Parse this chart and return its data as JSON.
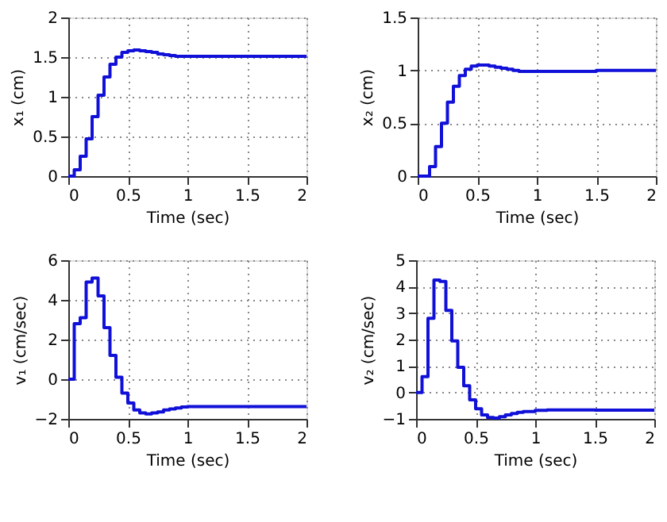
{
  "chart_data": [
    {
      "type": "step",
      "xlabel": "Time (sec)",
      "ylabel": "x₁ (cm)",
      "xlim": [
        0,
        2
      ],
      "xticks": [
        0,
        0.5,
        1,
        1.5,
        2
      ],
      "ylim": [
        0,
        2
      ],
      "yticks": [
        0,
        0.5,
        1,
        1.5,
        2
      ],
      "grid": true,
      "line_style": "solid",
      "marker": "none",
      "x": [
        0,
        0.05,
        0.1,
        0.15,
        0.2,
        0.25,
        0.3,
        0.35,
        0.4,
        0.45,
        0.5,
        0.55,
        0.6,
        0.65,
        0.7,
        0.75,
        0.8,
        0.85,
        0.9,
        1.0,
        1.5,
        2.0
      ],
      "series": [
        {
          "color": "#1010d8",
          "values": [
            0,
            0.08,
            0.25,
            0.47,
            0.75,
            1.02,
            1.25,
            1.41,
            1.5,
            1.56,
            1.58,
            1.59,
            1.58,
            1.57,
            1.56,
            1.54,
            1.53,
            1.52,
            1.51,
            1.51,
            1.51,
            1.51
          ]
        }
      ]
    },
    {
      "type": "step",
      "xlabel": "Time (sec)",
      "ylabel": "x₂ (cm)",
      "xlim": [
        0,
        2
      ],
      "xticks": [
        0,
        0.5,
        1,
        1.5,
        2
      ],
      "ylim": [
        0,
        1.5
      ],
      "yticks": [
        0,
        0.5,
        1,
        1.5
      ],
      "grid": true,
      "line_style": "solid",
      "marker": "none",
      "x": [
        0,
        0.05,
        0.1,
        0.15,
        0.2,
        0.25,
        0.3,
        0.35,
        0.4,
        0.45,
        0.5,
        0.55,
        0.6,
        0.65,
        0.7,
        0.75,
        0.8,
        0.85,
        0.9,
        1.0,
        1.5,
        2.0
      ],
      "series": [
        {
          "color": "#1010d8",
          "values": [
            0,
            0,
            0.09,
            0.28,
            0.5,
            0.7,
            0.85,
            0.95,
            1.01,
            1.04,
            1.05,
            1.05,
            1.04,
            1.03,
            1.02,
            1.01,
            1.0,
            0.99,
            0.99,
            0.99,
            1.0,
            1.0
          ]
        }
      ]
    },
    {
      "type": "step",
      "xlabel": "Time (sec)",
      "ylabel": "v₁ (cm/sec)",
      "xlim": [
        0,
        2
      ],
      "xticks": [
        0,
        0.5,
        1,
        1.5,
        2
      ],
      "ylim": [
        -2,
        6
      ],
      "yticks": [
        -2,
        0,
        2,
        4,
        6
      ],
      "grid": true,
      "line_style": "solid",
      "marker": "none",
      "x": [
        0,
        0.05,
        0.1,
        0.15,
        0.2,
        0.25,
        0.3,
        0.35,
        0.4,
        0.45,
        0.5,
        0.55,
        0.6,
        0.65,
        0.7,
        0.75,
        0.8,
        0.85,
        0.9,
        0.95,
        1.0,
        1.5,
        2.0
      ],
      "series": [
        {
          "color": "#1010d8",
          "values": [
            0,
            2.8,
            3.1,
            4.9,
            5.1,
            4.2,
            2.6,
            1.2,
            0.1,
            -0.7,
            -1.2,
            -1.55,
            -1.7,
            -1.75,
            -1.7,
            -1.65,
            -1.55,
            -1.5,
            -1.45,
            -1.4,
            -1.38,
            -1.38,
            -1.38
          ]
        }
      ]
    },
    {
      "type": "step",
      "xlabel": "Time (sec)",
      "ylabel": "v₂ (cm/sec)",
      "xlim": [
        0,
        2
      ],
      "xticks": [
        0,
        0.5,
        1,
        1.5,
        2
      ],
      "ylim": [
        -1,
        5
      ],
      "yticks": [
        -1,
        0,
        1,
        2,
        3,
        4,
        5
      ],
      "grid": true,
      "line_style": "solid",
      "marker": "none",
      "x": [
        0,
        0.05,
        0.1,
        0.15,
        0.2,
        0.25,
        0.3,
        0.35,
        0.4,
        0.45,
        0.5,
        0.55,
        0.6,
        0.65,
        0.7,
        0.75,
        0.8,
        0.85,
        0.9,
        1.0,
        1.1,
        1.5,
        2.0
      ],
      "series": [
        {
          "color": "#1010d8",
          "values": [
            0,
            0.6,
            2.8,
            4.25,
            4.2,
            3.1,
            1.95,
            0.95,
            0.25,
            -0.28,
            -0.62,
            -0.85,
            -0.95,
            -0.97,
            -0.92,
            -0.85,
            -0.8,
            -0.75,
            -0.72,
            -0.68,
            -0.66,
            -0.67,
            -0.67
          ]
        }
      ]
    }
  ]
}
